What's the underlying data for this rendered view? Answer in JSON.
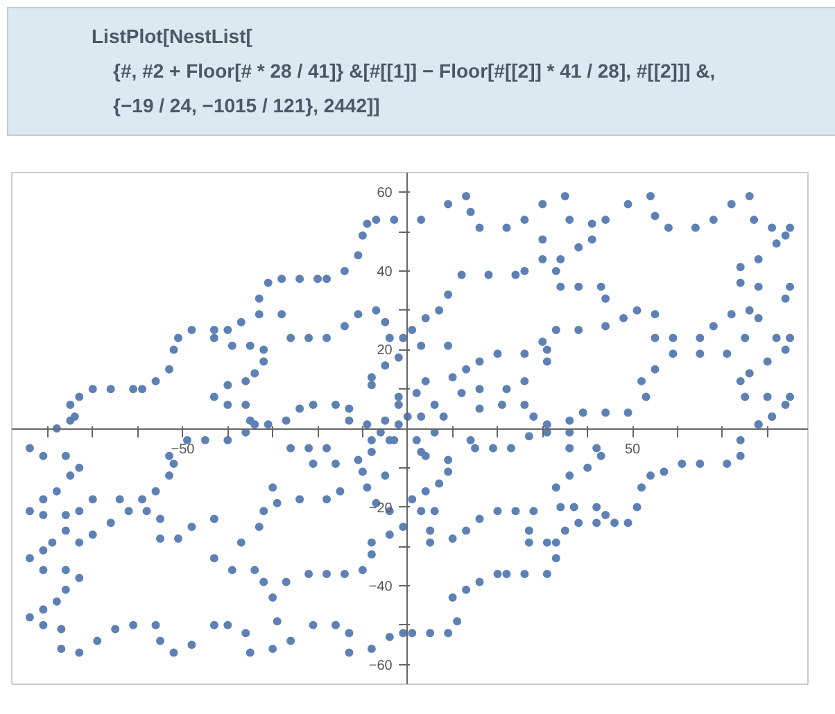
{
  "chart_data": {
    "type": "scatter",
    "title": "ListPlot[NestList[\n    {#, #2 + Floor[# * 28 / 41]} &[#[[1]] − Floor[#[[2]] * 41 / 28], #[[2]]] &,\n    {−19 / 24, −1015 / 121}, 2442]]",
    "marker": "circle",
    "grid": false,
    "xlim": [
      -88,
      89
    ],
    "ylim": [
      -65,
      65
    ],
    "xticks": [
      {
        "value": -80,
        "label": null
      },
      {
        "value": -70,
        "label": null
      },
      {
        "value": -60,
        "label": null
      },
      {
        "value": -50,
        "label": "−50"
      },
      {
        "value": -40,
        "label": null
      },
      {
        "value": -30,
        "label": null
      },
      {
        "value": -20,
        "label": null
      },
      {
        "value": -10,
        "label": null
      },
      {
        "value": 10,
        "label": null
      },
      {
        "value": 20,
        "label": null
      },
      {
        "value": 30,
        "label": null
      },
      {
        "value": 40,
        "label": null
      },
      50,
      {
        "value": 60,
        "label": null
      },
      {
        "value": 70,
        "label": null
      },
      {
        "value": 80,
        "label": null
      }
    ],
    "yticks": [
      {
        "value": -60,
        "label": "−60"
      },
      {
        "value": -50,
        "label": null
      },
      {
        "value": -40,
        "label": "−40"
      },
      {
        "value": -30,
        "label": null
      },
      {
        "value": -20,
        "label": "−20"
      },
      {
        "value": -10,
        "label": null
      },
      {
        "value": 10,
        "label": null
      },
      20,
      {
        "value": 30,
        "label": null
      },
      40,
      {
        "value": 50,
        "label": null
      },
      60
    ],
    "series": [
      {
        "color": "#5e81b5",
        "x": [
          -70,
          -66,
          -61,
          -59,
          -56,
          -53,
          -52,
          -51,
          -48,
          -43,
          -40,
          -37,
          -33,
          -33,
          -31,
          -28,
          -24,
          -20,
          -18,
          -14,
          -11,
          -10,
          -9,
          -7,
          -3,
          -75,
          -73,
          -74,
          -43,
          -39,
          -35,
          -32,
          -32,
          -34,
          -36,
          -40,
          -43,
          -40,
          -36,
          -35,
          -31,
          -27,
          -24,
          -21,
          -16,
          -13,
          -13,
          -9,
          -5,
          -2,
          -8,
          -8,
          -5,
          -2,
          -28,
          -26,
          -22,
          -18,
          -14,
          -11,
          -7,
          -5,
          -4,
          -1,
          3,
          9,
          13,
          14,
          16,
          22,
          26,
          30,
          35,
          36,
          41,
          44,
          49,
          54,
          55,
          58,
          64,
          68,
          72,
          76,
          77,
          81,
          85,
          30,
          30,
          34,
          38,
          41,
          33,
          34,
          38,
          43,
          44,
          12,
          18,
          24,
          26,
          9,
          7,
          4,
          1,
          74,
          78,
          82,
          84,
          74,
          78,
          85,
          84,
          33,
          38,
          44,
          48,
          51,
          55,
          55,
          59,
          65,
          68,
          72,
          76,
          78,
          75,
          82,
          85,
          84,
          80,
          76,
          74,
          75,
          80,
          85,
          84,
          81,
          78,
          31,
          26,
          20,
          16,
          13,
          10,
          12,
          16,
          22,
          26,
          31,
          30,
          16,
          21,
          26,
          28,
          31,
          36,
          39,
          44,
          49,
          52,
          53,
          55,
          59,
          65,
          71,
          4,
          6,
          9,
          3,
          -84,
          -81,
          -76,
          -73,
          -75,
          -78,
          -81,
          -84,
          -81,
          -76,
          -73,
          -76,
          -79,
          -81,
          -84,
          -81,
          -76,
          -73,
          -76,
          -78,
          -81,
          -84,
          -81,
          -77,
          -77,
          -73,
          -69,
          -65,
          -61,
          -56,
          -55,
          -52,
          -48,
          -43,
          -40,
          -36,
          -35,
          -30,
          -26,
          -21,
          -16,
          -13,
          -13,
          -8,
          -4,
          -1,
          -30,
          -29,
          -32,
          -27,
          -22,
          -18,
          -14,
          -10,
          -8,
          -8,
          -4,
          -1,
          -43,
          -39,
          -34,
          -37,
          -33,
          -32,
          -30,
          -29,
          -24,
          -18,
          -15,
          -9,
          -7,
          -4,
          -43,
          -48,
          -51,
          -55,
          -55,
          -58,
          -62,
          -66,
          -70,
          -73,
          -70,
          -64,
          -59,
          -56,
          -53,
          -52,
          -53,
          -49,
          -45,
          -40,
          -36,
          -34,
          -26,
          -22,
          -18,
          -21,
          -16,
          -11,
          -10,
          -5,
          -8,
          -4,
          -2,
          -78,
          -75,
          2,
          4,
          9,
          9,
          7,
          4,
          1,
          3,
          6,
          5,
          5,
          10,
          13,
          16,
          20,
          24,
          28,
          27,
          27,
          31,
          33,
          33,
          35,
          38,
          42,
          46,
          49,
          51,
          52,
          54,
          57,
          61,
          65,
          71,
          74,
          74,
          78,
          81,
          33,
          34,
          37,
          42,
          44,
          36,
          40,
          43,
          42,
          36,
          36,
          31,
          27,
          23,
          19,
          15,
          14,
          31,
          26,
          22,
          20,
          16,
          13,
          10,
          11,
          9,
          5,
          1,
          -6,
          -3,
          0,
          3,
          6,
          3,
          -2,
          2,
          8,
          -8
        ],
        "values": [
          10,
          10,
          10,
          10,
          12,
          15,
          20,
          23,
          25,
          25,
          25,
          27,
          29,
          33,
          37,
          38,
          38,
          38,
          38,
          40,
          44,
          49,
          52,
          53,
          53,
          6,
          8,
          3,
          23,
          21,
          21,
          20,
          17,
          14,
          12,
          11,
          8,
          6,
          6,
          2,
          1,
          2,
          5,
          6,
          6,
          5,
          2,
          1,
          2,
          6,
          11,
          13,
          16,
          18,
          29,
          23,
          23,
          23,
          26,
          29,
          30,
          27,
          23,
          23,
          53,
          57,
          59,
          55,
          51,
          51,
          53,
          57,
          59,
          53,
          52,
          53,
          57,
          59,
          54,
          51,
          51,
          53,
          57,
          59,
          53,
          51,
          51,
          48,
          43,
          43,
          46,
          48,
          40,
          36,
          36,
          36,
          33,
          39,
          39,
          39,
          40,
          34,
          30,
          28,
          25,
          41,
          43,
          47,
          49,
          37,
          36,
          36,
          33,
          25,
          25,
          26,
          28,
          30,
          29,
          23,
          23,
          23,
          26,
          29,
          30,
          28,
          23,
          23,
          23,
          20,
          17,
          14,
          12,
          8,
          8,
          8,
          6,
          3,
          1,
          20,
          19,
          19,
          17,
          15,
          13,
          9,
          10,
          10,
          12,
          17,
          22,
          5,
          6,
          6,
          3,
          1,
          2,
          4,
          4,
          4,
          12,
          8,
          15,
          19,
          19,
          19,
          12,
          6,
          21,
          21,
          -5,
          -7,
          -7,
          -10,
          -12,
          -16,
          -18,
          -21,
          -22,
          -22,
          -21,
          -26,
          -29,
          -31,
          -33,
          -36,
          -36,
          -38,
          -41,
          -44,
          -46,
          -48,
          -50,
          -51,
          -56,
          -57,
          -54,
          -51,
          -50,
          -50,
          -54,
          -57,
          -55,
          -50,
          -50,
          -52,
          -57,
          -56,
          -54,
          -50,
          -50,
          -52,
          -57,
          -56,
          -53,
          -52,
          -43,
          -49,
          -39,
          -39,
          -37,
          -37,
          -37,
          -36,
          -32,
          -29,
          -27,
          -25,
          -33,
          -36,
          -36,
          -29,
          -25,
          -21,
          -15,
          -19,
          -18,
          -18,
          -16,
          -15,
          -19,
          -21,
          -23,
          -25,
          -28,
          -28,
          -23,
          -21,
          -21,
          -24,
          -27,
          -29,
          -18,
          -18,
          -18,
          -16,
          -12,
          -9,
          -7,
          -3,
          -3,
          -3,
          -1,
          1,
          -5,
          -5,
          -5,
          -9,
          -9,
          -8,
          -11,
          -12,
          -3,
          -3,
          1,
          0,
          2,
          -3,
          -7,
          -8,
          -11,
          -14,
          -16,
          -18,
          -21,
          -21,
          -26,
          -29,
          -28,
          -26,
          -23,
          -21,
          -21,
          -21,
          -26,
          -29,
          -29,
          -29,
          -33,
          -26,
          -24,
          -24,
          -24,
          -24,
          -20,
          -15,
          -12,
          -11,
          -9,
          -9,
          -9,
          -7,
          -3,
          1,
          3,
          -15,
          -20,
          -20,
          -20,
          -22,
          -12,
          -10,
          -7,
          -5,
          -5,
          -1,
          -1,
          -2,
          -5,
          -5,
          -5,
          -3,
          -37,
          -37,
          -37,
          -37,
          -39,
          -41,
          -43,
          -49,
          -52,
          -52,
          -52,
          -1,
          -3,
          3,
          3,
          -1,
          -6,
          8,
          9,
          3,
          -6
        ]
      }
    ]
  }
}
